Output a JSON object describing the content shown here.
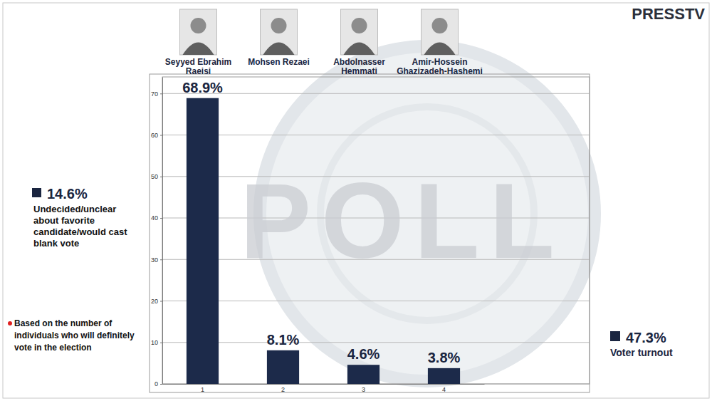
{
  "chart_data": {
    "type": "bar",
    "source": "PRESSTV",
    "watermark": "POLL",
    "categories": [
      "1",
      "2",
      "3",
      "4"
    ],
    "candidates": [
      "Seyyed Ebrahim Raeisi",
      "Mohsen Rezaei",
      "Abdolnasser Hemmati",
      "Amir-Hossein Ghazizadeh-Hashemi"
    ],
    "values": [
      68.9,
      8.1,
      4.6,
      3.8
    ],
    "value_labels": [
      "68.9%",
      "8.1%",
      "4.6%",
      "3.8%"
    ],
    "data_labels": true,
    "color": "#1c2a4a",
    "ylim": [
      0,
      74
    ],
    "yticks": [
      0,
      10,
      20,
      30,
      40,
      50,
      60,
      70
    ],
    "grid": true,
    "annotations": [
      {
        "value": 14.6,
        "label": "14.6%",
        "text": "Undecided/unclear about favorite candidate/would cast blank vote"
      },
      {
        "text": "Based on the number of individuals who will definitely vote in the election"
      },
      {
        "value": 47.3,
        "label": "47.3%",
        "text": "Voter turnout"
      }
    ]
  }
}
